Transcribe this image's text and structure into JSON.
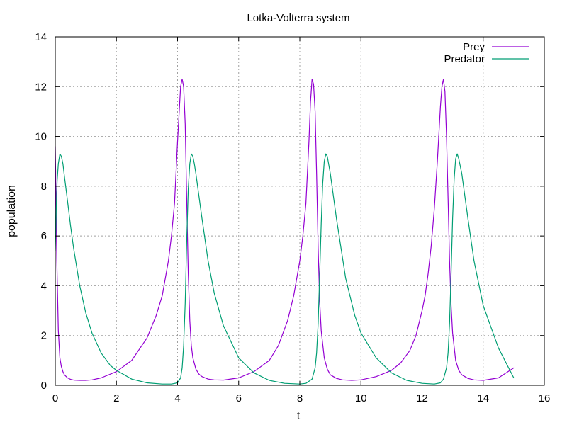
{
  "chart_data": {
    "type": "line",
    "title": "Lotka-Volterra system",
    "xlabel": "t",
    "ylabel": "population",
    "xlim": [
      0,
      16
    ],
    "ylim": [
      0,
      14
    ],
    "xticks": [
      0,
      2,
      4,
      6,
      8,
      10,
      12,
      14,
      16
    ],
    "yticks": [
      0,
      2,
      4,
      6,
      8,
      10,
      12,
      14
    ],
    "grid": true,
    "legend_position": "top-right",
    "series": [
      {
        "name": "Prey",
        "color": "#9400d3",
        "x": [
          0,
          0.05,
          0.1,
          0.15,
          0.2,
          0.25,
          0.3,
          0.4,
          0.5,
          0.6,
          0.8,
          1.0,
          1.2,
          1.5,
          2.0,
          2.5,
          3.0,
          3.3,
          3.5,
          3.7,
          3.8,
          3.9,
          4.0,
          4.1,
          4.15,
          4.2,
          4.25,
          4.3,
          4.35,
          4.4,
          4.45,
          4.5,
          4.6,
          4.7,
          4.8,
          5.0,
          5.2,
          5.5,
          6.0,
          6.5,
          7.0,
          7.3,
          7.6,
          7.8,
          8.0,
          8.1,
          8.2,
          8.3,
          8.35,
          8.4,
          8.45,
          8.5,
          8.55,
          8.6,
          8.65,
          8.7,
          8.8,
          8.9,
          9.0,
          9.2,
          9.4,
          9.7,
          10.0,
          10.5,
          11.0,
          11.3,
          11.6,
          11.8,
          12.0,
          12.1,
          12.2,
          12.3,
          12.4,
          12.5,
          12.6,
          12.65,
          12.7,
          12.75,
          12.8,
          12.85,
          12.9,
          12.95,
          13.0,
          13.1,
          13.2,
          13.3,
          13.5,
          13.7,
          14.0,
          14.5,
          15.0
        ],
        "y": [
          9.6,
          5.0,
          2.2,
          1.1,
          0.75,
          0.55,
          0.42,
          0.3,
          0.24,
          0.21,
          0.2,
          0.2,
          0.22,
          0.3,
          0.55,
          1.0,
          1.9,
          2.8,
          3.6,
          5.0,
          6.0,
          7.3,
          9.8,
          12.0,
          12.3,
          12.0,
          10.5,
          7.5,
          4.5,
          2.6,
          1.6,
          1.1,
          0.65,
          0.45,
          0.35,
          0.25,
          0.22,
          0.21,
          0.3,
          0.55,
          1.0,
          1.6,
          2.6,
          3.6,
          5.0,
          6.0,
          7.3,
          9.8,
          11.4,
          12.3,
          12.1,
          11.0,
          8.5,
          5.5,
          3.4,
          2.2,
          1.1,
          0.65,
          0.42,
          0.28,
          0.22,
          0.2,
          0.22,
          0.35,
          0.6,
          0.9,
          1.4,
          2.0,
          3.0,
          3.6,
          4.5,
          5.6,
          7.1,
          9.0,
          11.2,
          12.0,
          12.3,
          11.8,
          10.0,
          7.5,
          5.0,
          3.2,
          2.1,
          1.0,
          0.6,
          0.42,
          0.28,
          0.22,
          0.2,
          0.3,
          0.7
        ]
      },
      {
        "name": "Predator",
        "color": "#009e73",
        "x": [
          0,
          0.03,
          0.06,
          0.1,
          0.15,
          0.2,
          0.25,
          0.3,
          0.4,
          0.5,
          0.6,
          0.8,
          1.0,
          1.2,
          1.5,
          1.8,
          2.0,
          2.5,
          3.0,
          3.5,
          3.8,
          4.0,
          4.1,
          4.15,
          4.2,
          4.25,
          4.3,
          4.35,
          4.4,
          4.45,
          4.5,
          4.55,
          4.6,
          4.7,
          4.8,
          5.0,
          5.2,
          5.5,
          6.0,
          6.5,
          7.0,
          7.5,
          8.0,
          8.2,
          8.4,
          8.5,
          8.55,
          8.6,
          8.65,
          8.7,
          8.75,
          8.8,
          8.85,
          8.9,
          9.0,
          9.1,
          9.2,
          9.5,
          9.8,
          10.0,
          10.5,
          11.0,
          11.5,
          12.0,
          12.4,
          12.6,
          12.7,
          12.8,
          12.85,
          12.9,
          12.95,
          13.0,
          13.05,
          13.1,
          13.15,
          13.2,
          13.3,
          13.4,
          13.5,
          13.7,
          14.0,
          14.5,
          15.0
        ],
        "y": [
          5.4,
          7.0,
          8.2,
          8.9,
          9.3,
          9.2,
          8.9,
          8.4,
          7.4,
          6.4,
          5.5,
          4.0,
          2.9,
          2.1,
          1.3,
          0.8,
          0.6,
          0.25,
          0.1,
          0.05,
          0.05,
          0.1,
          0.3,
          0.7,
          1.6,
          3.3,
          5.8,
          7.9,
          8.9,
          9.3,
          9.2,
          8.9,
          8.5,
          7.6,
          6.7,
          5.0,
          3.7,
          2.4,
          1.1,
          0.5,
          0.2,
          0.08,
          0.05,
          0.08,
          0.25,
          0.7,
          1.3,
          2.5,
          4.4,
          6.5,
          8.1,
          9.0,
          9.3,
          9.2,
          8.5,
          7.6,
          6.7,
          4.3,
          2.8,
          2.1,
          1.1,
          0.5,
          0.2,
          0.08,
          0.05,
          0.1,
          0.25,
          0.7,
          1.3,
          2.5,
          4.5,
          6.7,
          8.3,
          9.1,
          9.3,
          9.1,
          8.5,
          7.6,
          6.7,
          5.0,
          3.2,
          1.5,
          0.3
        ]
      }
    ]
  }
}
